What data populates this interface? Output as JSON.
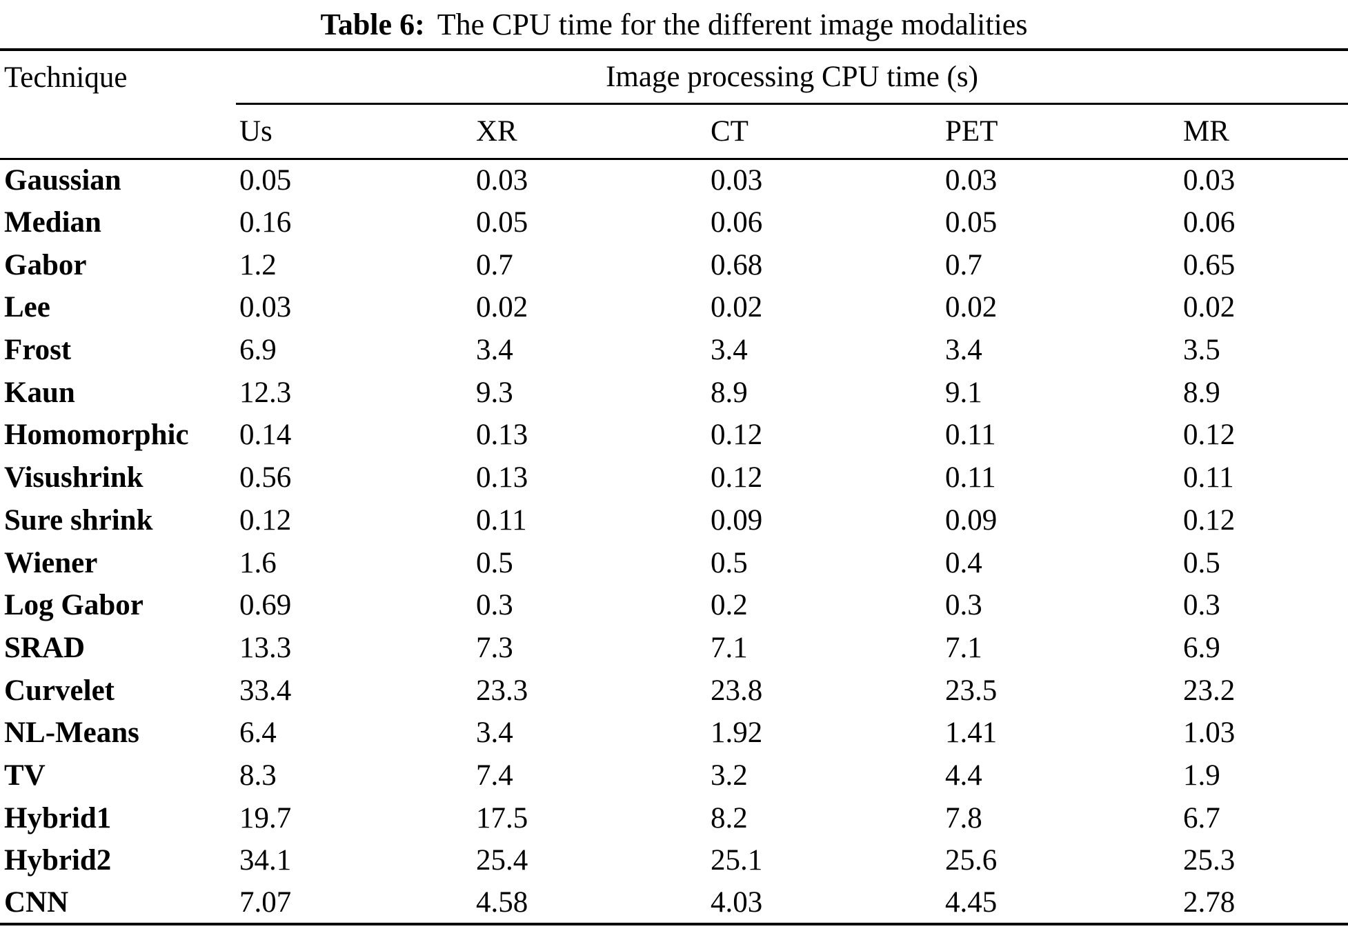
{
  "caption": {
    "label": "Table 6:",
    "text": "The CPU time for the different image modalities"
  },
  "table": {
    "technique_header": "Technique",
    "span_header": "Image processing CPU time (s)",
    "modalities": [
      "Us",
      "XR",
      "CT",
      "PET",
      "MR"
    ],
    "rows": [
      {
        "technique": "Gaussian",
        "values": [
          "0.05",
          "0.03",
          "0.03",
          "0.03",
          "0.03"
        ]
      },
      {
        "technique": "Median",
        "values": [
          "0.16",
          "0.05",
          "0.06",
          "0.05",
          "0.06"
        ]
      },
      {
        "technique": "Gabor",
        "values": [
          "1.2",
          "0.7",
          "0.68",
          "0.7",
          "0.65"
        ]
      },
      {
        "technique": "Lee",
        "values": [
          "0.03",
          "0.02",
          "0.02",
          "0.02",
          "0.02"
        ]
      },
      {
        "technique": "Frost",
        "values": [
          "6.9",
          "3.4",
          "3.4",
          "3.4",
          "3.5"
        ]
      },
      {
        "technique": "Kaun",
        "values": [
          "12.3",
          "9.3",
          "8.9",
          "9.1",
          "8.9"
        ]
      },
      {
        "technique": "Homomorphic",
        "values": [
          "0.14",
          "0.13",
          "0.12",
          "0.11",
          "0.12"
        ]
      },
      {
        "technique": "Visushrink",
        "values": [
          "0.56",
          "0.13",
          "0.12",
          "0.11",
          "0.11"
        ]
      },
      {
        "technique": "Sure shrink",
        "values": [
          "0.12",
          "0.11",
          "0.09",
          "0.09",
          "0.12"
        ]
      },
      {
        "technique": "Wiener",
        "values": [
          "1.6",
          "0.5",
          "0.5",
          "0.4",
          "0.5"
        ]
      },
      {
        "technique": "Log Gabor",
        "values": [
          "0.69",
          "0.3",
          "0.2",
          "0.3",
          "0.3"
        ]
      },
      {
        "technique": "SRAD",
        "values": [
          "13.3",
          "7.3",
          "7.1",
          "7.1",
          "6.9"
        ]
      },
      {
        "technique": "Curvelet",
        "values": [
          "33.4",
          "23.3",
          "23.8",
          "23.5",
          "23.2"
        ]
      },
      {
        "technique": "NL-Means",
        "values": [
          "6.4",
          "3.4",
          "1.92",
          "1.41",
          "1.03"
        ]
      },
      {
        "technique": "TV",
        "values": [
          "8.3",
          "7.4",
          "3.2",
          "4.4",
          "1.9"
        ]
      },
      {
        "technique": "Hybrid1",
        "values": [
          "19.7",
          "17.5",
          "8.2",
          "7.8",
          "6.7"
        ]
      },
      {
        "technique": "Hybrid2",
        "values": [
          "34.1",
          "25.4",
          "25.1",
          "25.6",
          "25.3"
        ]
      },
      {
        "technique": "CNN",
        "values": [
          "7.07",
          "4.58",
          "4.03",
          "4.45",
          "2.78"
        ]
      }
    ]
  },
  "colors": {
    "background": "#ffffff",
    "text": "#000000",
    "rule": "#000000"
  }
}
